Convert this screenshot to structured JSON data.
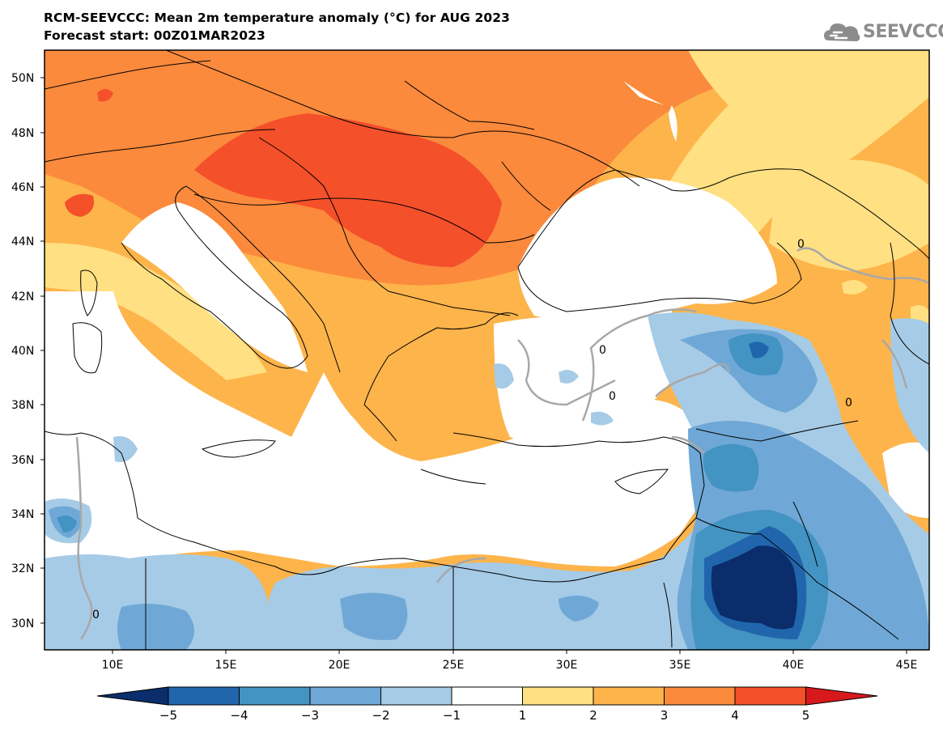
{
  "title": {
    "line1": "RCM-SEEVCCC: Mean 2m temperature anomaly (°C) for AUG 2023",
    "line2": "Forecast start: 00Z01MAR2023"
  },
  "logo": {
    "text": "SEEVCCC",
    "icon": "cloud-icon"
  },
  "map": {
    "lat_range": [
      29,
      51
    ],
    "lon_range": [
      7,
      46
    ],
    "lat_ticks": [
      "50N",
      "48N",
      "46N",
      "44N",
      "42N",
      "40N",
      "38N",
      "36N",
      "34N",
      "32N",
      "30N"
    ],
    "lon_ticks": [
      "10E",
      "15E",
      "20E",
      "25E",
      "30E",
      "35E",
      "40E",
      "45E"
    ],
    "contour_label": "0"
  },
  "colorbar": {
    "levels": [
      "−5",
      "−4",
      "−3",
      "−2",
      "−1",
      "1",
      "2",
      "3",
      "4",
      "5"
    ],
    "colors": [
      "#0b2d6b",
      "#2166ac",
      "#4393c3",
      "#6fa8d6",
      "#a6cbe6",
      "#ffffff",
      "#ffe082",
      "#fdb44b",
      "#fb8a3c",
      "#f4502a",
      "#d7191c"
    ]
  }
}
